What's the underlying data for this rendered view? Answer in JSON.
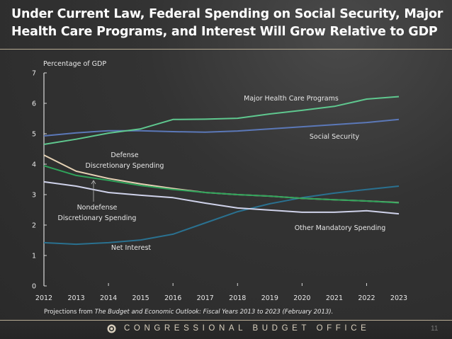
{
  "slide": {
    "title": "Under Current Law, Federal Spending on Social Security, Major Health Care Programs, and Interest Will Grow Relative to GDP",
    "footer_org": "CONGRESSIONAL BUDGET OFFICE",
    "page_number": "11",
    "source_prefix": "Projections from ",
    "source_title": "The Budget and Economic Outlook: Fiscal Years 2013 to 2023 (February 2013)."
  },
  "chart_data": {
    "type": "line",
    "title": "Under Current Law, Federal Spending on Social Security, Major Health Care Programs, and Interest Will Grow Relative to GDP",
    "xlabel": "",
    "ylabel": "Percentage of GDP",
    "x": [
      2012,
      2013,
      2014,
      2015,
      2016,
      2017,
      2018,
      2019,
      2020,
      2021,
      2022,
      2023
    ],
    "xticks": [
      "2012",
      "2013",
      "2014",
      "2015",
      "2016",
      "2017",
      "2018",
      "2019",
      "2020",
      "2021",
      "2022",
      "2023"
    ],
    "yticks": [
      "0",
      "1",
      "2",
      "3",
      "4",
      "5",
      "6",
      "7"
    ],
    "ylim": [
      0,
      7
    ],
    "grid": false,
    "legend": "inline-labels",
    "series": [
      {
        "name": "Major Health Care Programs",
        "color": "#5fc88f",
        "values": [
          4.65,
          4.82,
          5.02,
          5.16,
          5.47,
          5.48,
          5.51,
          5.65,
          5.77,
          5.9,
          6.14,
          6.22
        ]
      },
      {
        "name": "Social Security",
        "color": "#5b78b8",
        "values": [
          4.93,
          5.03,
          5.1,
          5.1,
          5.07,
          5.05,
          5.09,
          5.16,
          5.23,
          5.3,
          5.37,
          5.47
        ]
      },
      {
        "name": "Defense Discretionary Spending",
        "color": "#e6d2b5",
        "values": [
          4.3,
          3.77,
          3.53,
          3.35,
          3.2,
          3.07,
          3.0,
          2.95,
          2.88,
          2.83,
          2.79,
          2.74
        ]
      },
      {
        "name": "Nondefense Discretionary Spending",
        "color": "#2fa35a",
        "values": [
          3.95,
          3.63,
          3.47,
          3.3,
          3.17,
          3.07,
          3.0,
          2.95,
          2.88,
          2.83,
          2.79,
          2.73
        ]
      },
      {
        "name": "Other Mandatory Spending",
        "color": "#cfd2ea",
        "values": [
          3.42,
          3.28,
          3.07,
          2.98,
          2.9,
          2.72,
          2.56,
          2.49,
          2.42,
          2.42,
          2.47,
          2.37
        ]
      },
      {
        "name": "Net Interest",
        "color": "#2a7190",
        "values": [
          1.42,
          1.37,
          1.42,
          1.51,
          1.7,
          2.07,
          2.44,
          2.7,
          2.9,
          3.05,
          3.17,
          3.28
        ]
      }
    ],
    "annotations": [
      {
        "text_lines": [
          "Major Health Care Programs"
        ],
        "series": "Major Health Care Programs"
      },
      {
        "text_lines": [
          "Social Security"
        ],
        "series": "Social Security"
      },
      {
        "text_lines": [
          "Defense",
          "Discretionary Spending"
        ],
        "series": "Defense Discretionary Spending"
      },
      {
        "text_lines": [
          "Nondefense",
          "Discretionary Spending"
        ],
        "series": "Nondefense Discretionary Spending",
        "arrow": true
      },
      {
        "text_lines": [
          "Other Mandatory Spending"
        ],
        "series": "Other Mandatory Spending"
      },
      {
        "text_lines": [
          "Net Interest"
        ],
        "series": "Net Interest"
      }
    ]
  }
}
